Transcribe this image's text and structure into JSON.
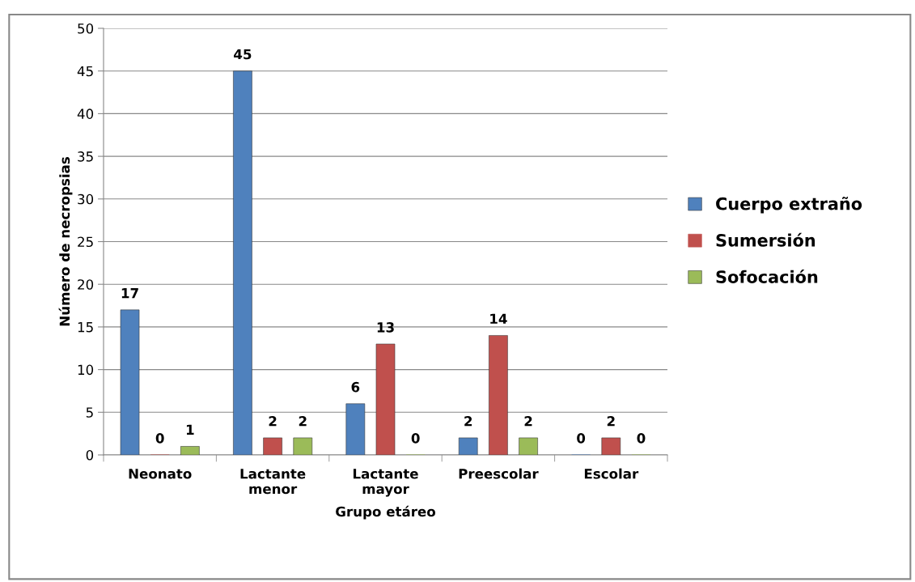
{
  "chart_data": {
    "type": "bar",
    "xlabel": "Grupo etáreo",
    "ylabel": "Número de necropsias",
    "categories": [
      "Neonato",
      "Lactante\nmenor",
      "Lactante\nmayor",
      "Preescolar",
      "Escolar"
    ],
    "series": [
      {
        "name": "Cuerpo extraño",
        "color": "#4f81bd",
        "values": [
          17,
          45,
          6,
          2,
          0
        ]
      },
      {
        "name": "Sumersión",
        "color": "#c0504d",
        "values": [
          0,
          2,
          13,
          14,
          2
        ]
      },
      {
        "name": "Sofocación",
        "color": "#9bbb59",
        "values": [
          1,
          2,
          0,
          2,
          0
        ]
      }
    ],
    "ylim": [
      0,
      50
    ],
    "yticks": [
      0,
      5,
      10,
      15,
      20,
      25,
      30,
      35,
      40,
      45,
      50
    ],
    "grid": "y",
    "legend": "right",
    "data_labels": true
  }
}
